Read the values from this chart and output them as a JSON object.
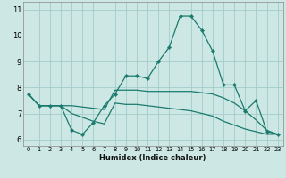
{
  "xlabel": "Humidex (Indice chaleur)",
  "background_color": "#cde8e4",
  "grid_color": "#a0cccc",
  "line_color": "#1a7a6e",
  "xlim": [
    -0.5,
    23.5
  ],
  "ylim": [
    5.75,
    11.3
  ],
  "xticks": [
    0,
    1,
    2,
    3,
    4,
    5,
    6,
    7,
    8,
    9,
    10,
    11,
    12,
    13,
    14,
    15,
    16,
    17,
    18,
    19,
    20,
    21,
    22,
    23
  ],
  "yticks": [
    6,
    7,
    8,
    9,
    10,
    11
  ],
  "line1_x": [
    0,
    1,
    2,
    3,
    4,
    5,
    6,
    7,
    8,
    9,
    10,
    11,
    12,
    13,
    14,
    15,
    16,
    17,
    18,
    19,
    20,
    21,
    22,
    23
  ],
  "line1_y": [
    7.75,
    7.3,
    7.3,
    7.3,
    6.35,
    6.2,
    6.65,
    7.3,
    7.75,
    8.45,
    8.45,
    8.35,
    9.0,
    9.55,
    10.75,
    10.75,
    10.2,
    9.4,
    8.1,
    8.1,
    7.1,
    7.5,
    6.3,
    6.2
  ],
  "line2_x": [
    0,
    1,
    2,
    3,
    4,
    5,
    6,
    7,
    8,
    9,
    10,
    11,
    12,
    13,
    14,
    15,
    16,
    17,
    18,
    19,
    20,
    21,
    22,
    23
  ],
  "line2_y": [
    7.75,
    7.3,
    7.3,
    7.3,
    7.3,
    7.25,
    7.2,
    7.15,
    7.9,
    7.9,
    7.9,
    7.85,
    7.85,
    7.85,
    7.85,
    7.85,
    7.8,
    7.75,
    7.6,
    7.4,
    7.1,
    6.75,
    6.35,
    6.2
  ],
  "line3_x": [
    0,
    1,
    2,
    3,
    4,
    5,
    6,
    7,
    8,
    9,
    10,
    11,
    12,
    13,
    14,
    15,
    16,
    17,
    18,
    19,
    20,
    21,
    22,
    23
  ],
  "line3_y": [
    7.75,
    7.3,
    7.3,
    7.3,
    7.0,
    6.85,
    6.7,
    6.6,
    7.4,
    7.35,
    7.35,
    7.3,
    7.25,
    7.2,
    7.15,
    7.1,
    7.0,
    6.9,
    6.7,
    6.55,
    6.4,
    6.3,
    6.2,
    6.2
  ]
}
